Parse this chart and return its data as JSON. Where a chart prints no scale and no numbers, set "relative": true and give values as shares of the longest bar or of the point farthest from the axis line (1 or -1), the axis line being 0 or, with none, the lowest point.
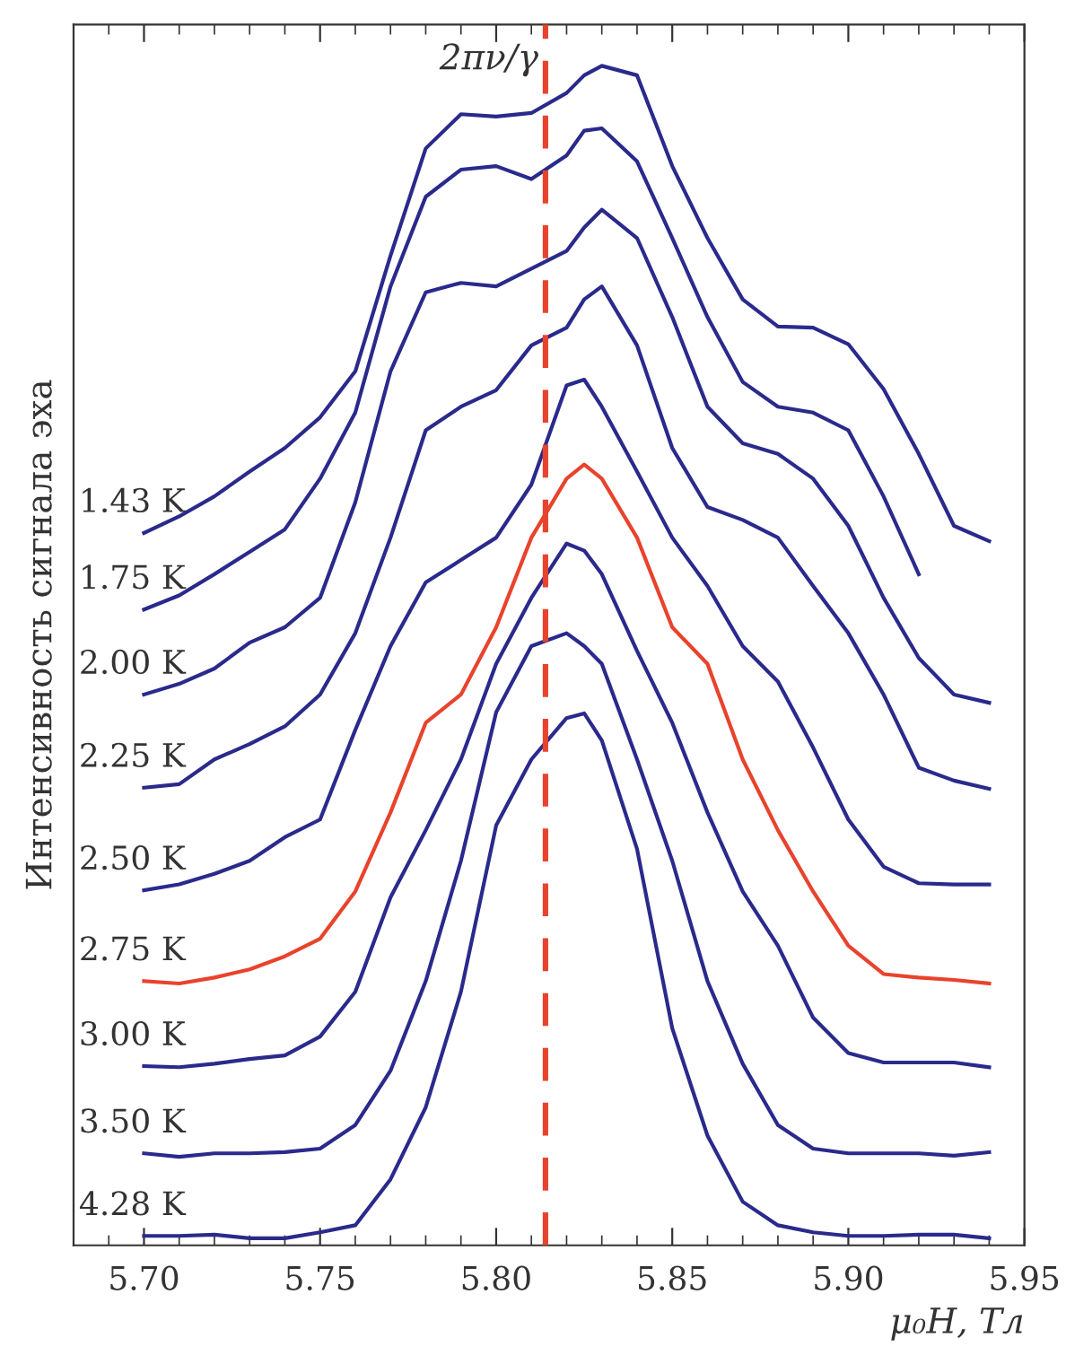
{
  "chart_data": {
    "type": "line",
    "relative": true,
    "xlabel": "μ₀H, Тл",
    "ylabel": "Интенсивность сигнала эха",
    "legend": false,
    "grid": false,
    "marker": "none",
    "line_style": "solid",
    "x": [
      5.7,
      5.71,
      5.72,
      5.73,
      5.74,
      5.75,
      5.76,
      5.77,
      5.78,
      5.79,
      5.8,
      5.81,
      5.82,
      5.825,
      5.83,
      5.84,
      5.85,
      5.86,
      5.87,
      5.88,
      5.89,
      5.9,
      5.91,
      5.92,
      5.93,
      5.94
    ],
    "xlim": [
      5.68,
      5.95
    ],
    "xticks": [
      {
        "value": 5.7,
        "label": "5.70"
      },
      {
        "value": 5.71,
        "label": null
      },
      {
        "value": 5.72,
        "label": null
      },
      {
        "value": 5.73,
        "label": null
      },
      {
        "value": 5.74,
        "label": null
      },
      {
        "value": 5.75,
        "label": "5.75"
      },
      {
        "value": 5.76,
        "label": null
      },
      {
        "value": 5.77,
        "label": null
      },
      {
        "value": 5.78,
        "label": null
      },
      {
        "value": 5.79,
        "label": null
      },
      {
        "value": 5.8,
        "label": "5.80"
      },
      {
        "value": 5.81,
        "label": null
      },
      {
        "value": 5.82,
        "label": null
      },
      {
        "value": 5.83,
        "label": null
      },
      {
        "value": 5.84,
        "label": null
      },
      {
        "value": 5.85,
        "label": "5.85"
      },
      {
        "value": 5.86,
        "label": null
      },
      {
        "value": 5.87,
        "label": null
      },
      {
        "value": 5.88,
        "label": null
      },
      {
        "value": 5.89,
        "label": null
      },
      {
        "value": 5.9,
        "label": "5.90"
      },
      {
        "value": 5.91,
        "label": null
      },
      {
        "value": 5.92,
        "label": null
      },
      {
        "value": 5.93,
        "label": null
      },
      {
        "value": 5.94,
        "label": null
      },
      {
        "value": 5.95,
        "label": "5.95"
      },
      {
        "value": 5.69,
        "label": null
      }
    ],
    "ref_lines": [
      {
        "axis": "x",
        "value": 5.814,
        "label": "2πν/γ",
        "color": "#e8432c",
        "line_style": "dashed"
      }
    ],
    "series": [
      {
        "name": "1.43 K",
        "color": "#2a2a8c",
        "values": [
          0.604,
          0.618,
          0.635,
          0.656,
          0.676,
          0.702,
          0.741,
          0.839,
          0.93,
          0.959,
          0.957,
          0.96,
          0.977,
          0.992,
          1.0,
          0.992,
          0.915,
          0.854,
          0.802,
          0.779,
          0.778,
          0.764,
          0.726,
          0.671,
          0.61,
          0.597
        ]
      },
      {
        "name": "1.75 K",
        "color": "#2a2a8c",
        "values": [
          0.539,
          0.551,
          0.569,
          0.588,
          0.607,
          0.65,
          0.706,
          0.813,
          0.889,
          0.912,
          0.915,
          0.904,
          0.924,
          0.945,
          0.947,
          0.919,
          0.854,
          0.787,
          0.732,
          0.711,
          0.706,
          0.691,
          0.635,
          0.569,
          null,
          null
        ]
      },
      {
        "name": "2.00 K",
        "color": "#2a2a8c",
        "values": [
          0.467,
          0.476,
          0.489,
          0.511,
          0.524,
          0.549,
          0.63,
          0.741,
          0.808,
          0.816,
          0.813,
          0.828,
          0.843,
          0.863,
          0.878,
          0.854,
          0.787,
          0.711,
          0.68,
          0.671,
          0.65,
          0.61,
          0.549,
          0.498,
          0.467,
          0.46
        ]
      },
      {
        "name": "2.25 K",
        "color": "#2a2a8c",
        "values": [
          0.388,
          0.391,
          0.412,
          0.425,
          0.44,
          0.467,
          0.519,
          0.6,
          0.691,
          0.711,
          0.725,
          0.763,
          0.778,
          0.802,
          0.813,
          0.763,
          0.676,
          0.626,
          0.615,
          0.6,
          0.559,
          0.519,
          0.467,
          0.405,
          0.394,
          0.387
        ]
      },
      {
        "name": "2.50 K",
        "color": "#2a2a8c",
        "values": [
          0.301,
          0.306,
          0.315,
          0.326,
          0.346,
          0.361,
          0.437,
          0.508,
          0.562,
          0.581,
          0.6,
          0.645,
          0.729,
          0.734,
          0.711,
          0.656,
          0.6,
          0.559,
          0.508,
          0.478,
          0.422,
          0.361,
          0.321,
          0.307,
          0.306,
          0.306
        ]
      },
      {
        "name": "2.75 K",
        "color": "#e8432c",
        "values": [
          0.224,
          0.222,
          0.227,
          0.234,
          0.245,
          0.26,
          0.3,
          0.367,
          0.443,
          0.467,
          0.524,
          0.6,
          0.65,
          0.662,
          0.65,
          0.6,
          0.524,
          0.493,
          0.412,
          0.352,
          0.3,
          0.254,
          0.23,
          0.227,
          0.225,
          0.222
        ]
      },
      {
        "name": "3.00 K",
        "color": "#2a2a8c",
        "values": [
          0.152,
          0.151,
          0.154,
          0.158,
          0.161,
          0.177,
          0.215,
          0.295,
          0.352,
          0.412,
          0.493,
          0.549,
          0.595,
          0.589,
          0.569,
          0.504,
          0.443,
          0.367,
          0.3,
          0.254,
          0.193,
          0.163,
          0.155,
          0.155,
          0.155,
          0.151
        ]
      },
      {
        "name": "3.50 K",
        "color": "#2a2a8c",
        "values": [
          0.078,
          0.075,
          0.078,
          0.078,
          0.079,
          0.082,
          0.102,
          0.148,
          0.224,
          0.326,
          0.452,
          0.508,
          0.519,
          0.508,
          0.493,
          0.412,
          0.326,
          0.224,
          0.154,
          0.102,
          0.082,
          0.078,
          0.078,
          0.078,
          0.076,
          0.079
        ]
      },
      {
        "name": "4.28 K",
        "color": "#2a2a8c",
        "values": [
          0.008,
          0.008,
          0.009,
          0.006,
          0.006,
          0.011,
          0.017,
          0.056,
          0.117,
          0.215,
          0.356,
          0.412,
          0.447,
          0.451,
          0.428,
          0.336,
          0.184,
          0.093,
          0.037,
          0.017,
          0.011,
          0.008,
          0.008,
          0.009,
          0.009,
          0.006
        ]
      }
    ]
  }
}
